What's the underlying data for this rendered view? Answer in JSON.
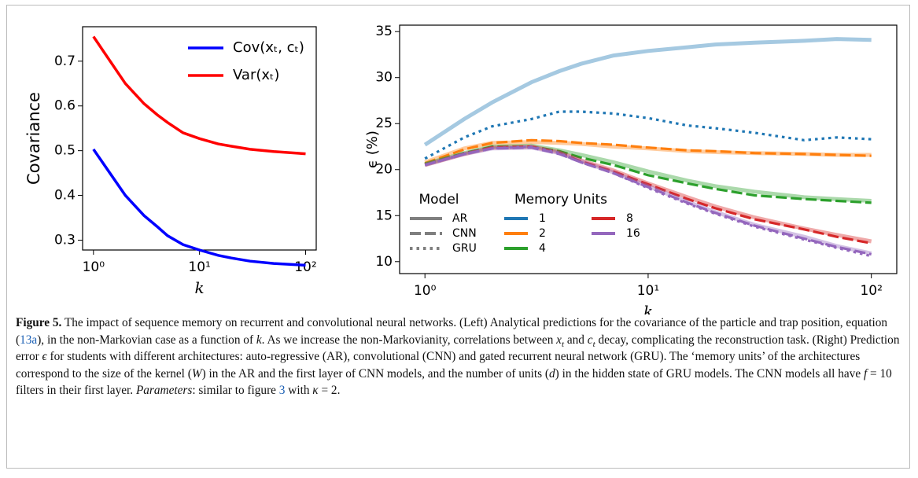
{
  "chart_data": [
    {
      "type": "line",
      "xscale": "log",
      "xlim": [
        0.79,
        126
      ],
      "ylim": [
        0.278,
        0.777
      ],
      "xticks": [
        {
          "value": 1,
          "label": "10⁰"
        },
        {
          "value": 10,
          "label": "10¹"
        },
        {
          "value": 100,
          "label": "10²"
        }
      ],
      "yticks": [
        0.3,
        0.4,
        0.5,
        0.6,
        0.7
      ],
      "xlabel": "k",
      "ylabel": "Covariance",
      "x": [
        1,
        2,
        3,
        4,
        5,
        7,
        10,
        15,
        20,
        30,
        50,
        100
      ],
      "series": [
        {
          "name": "Cov(xₜ, cₜ)",
          "color": "#0000ff",
          "values": [
            0.503,
            0.4,
            0.355,
            0.33,
            0.31,
            0.29,
            0.278,
            0.266,
            0.26,
            0.253,
            0.248,
            0.244
          ]
        },
        {
          "name": "Var(xₜ)",
          "color": "#ff0000",
          "values": [
            0.755,
            0.65,
            0.605,
            0.58,
            0.563,
            0.54,
            0.527,
            0.515,
            0.51,
            0.503,
            0.498,
            0.493
          ]
        }
      ]
    },
    {
      "type": "line",
      "xscale": "log",
      "xlim": [
        0.77,
        130
      ],
      "ylim": [
        8.7,
        35.7
      ],
      "xticks": [
        {
          "value": 1,
          "label": "10⁰"
        },
        {
          "value": 10,
          "label": "10¹"
        },
        {
          "value": 100,
          "label": "10²"
        }
      ],
      "yticks": [
        10,
        15,
        20,
        25,
        30,
        35
      ],
      "xlabel": "k",
      "ylabel": "ϵ (%)",
      "x": [
        1,
        1.5,
        2,
        3,
        4,
        5,
        7,
        10,
        15,
        20,
        30,
        50,
        70,
        100
      ],
      "series": [
        {
          "color": "#1f77b4",
          "linestyle": "solid",
          "alpha": 0.4,
          "values": [
            22.7,
            25.5,
            27.3,
            29.5,
            30.7,
            31.5,
            32.4,
            32.9,
            33.3,
            33.6,
            33.8,
            34.0,
            34.2,
            34.1
          ]
        },
        {
          "color": "#1f77b4",
          "linestyle": "dotted",
          "alpha": 1,
          "values": [
            21.2,
            23.5,
            24.7,
            25.5,
            26.3,
            26.3,
            26.1,
            25.6,
            24.8,
            24.5,
            24.0,
            23.2,
            23.5,
            23.3
          ]
        },
        {
          "color": "#ff7f0e",
          "linestyle": "solid",
          "alpha": 0.4,
          "values": [
            20.8,
            22.3,
            22.9,
            23.0,
            22.9,
            22.8,
            22.5,
            22.3,
            22.0,
            21.9,
            21.8,
            21.7,
            21.6,
            21.6
          ]
        },
        {
          "color": "#ff7f0e",
          "linestyle": "dashed",
          "alpha": 1,
          "values": [
            20.7,
            22.2,
            22.9,
            23.2,
            23.1,
            22.9,
            22.7,
            22.4,
            22.1,
            22.0,
            21.8,
            21.7,
            21.6,
            21.5
          ]
        },
        {
          "color": "#2ca02c",
          "linestyle": "solid",
          "alpha": 0.4,
          "values": [
            20.6,
            21.8,
            22.5,
            22.6,
            22.1,
            21.6,
            20.8,
            19.8,
            18.8,
            18.2,
            17.6,
            17.0,
            16.8,
            16.6
          ]
        },
        {
          "color": "#2ca02c",
          "linestyle": "dashed",
          "alpha": 1,
          "values": [
            20.6,
            21.8,
            22.5,
            22.5,
            22.0,
            21.3,
            20.5,
            19.4,
            18.5,
            17.9,
            17.2,
            16.8,
            16.6,
            16.4
          ]
        },
        {
          "color": "#d62728",
          "linestyle": "solid",
          "alpha": 0.4,
          "values": [
            20.5,
            21.7,
            22.4,
            22.5,
            21.9,
            21.0,
            19.9,
            18.5,
            17.0,
            16.0,
            14.8,
            13.6,
            12.9,
            12.2
          ]
        },
        {
          "color": "#d62728",
          "linestyle": "dashed",
          "alpha": 1,
          "values": [
            20.5,
            21.7,
            22.4,
            22.5,
            21.8,
            20.9,
            19.8,
            18.4,
            16.8,
            15.8,
            14.6,
            13.5,
            12.7,
            12.0
          ]
        },
        {
          "color": "#9467bd",
          "linestyle": "solid",
          "alpha": 0.4,
          "values": [
            20.5,
            21.7,
            22.3,
            22.4,
            21.8,
            20.9,
            19.7,
            18.2,
            16.5,
            15.4,
            14.0,
            12.7,
            11.7,
            10.9
          ]
        },
        {
          "color": "#9467bd",
          "linestyle": "dashed",
          "alpha": 1,
          "values": [
            20.5,
            21.7,
            22.3,
            22.4,
            21.7,
            20.8,
            19.6,
            18.1,
            16.4,
            15.3,
            13.9,
            12.5,
            11.6,
            10.8
          ]
        },
        {
          "color": "#9467bd",
          "linestyle": "dotted",
          "alpha": 1,
          "values": [
            20.5,
            21.7,
            22.3,
            22.5,
            21.8,
            20.8,
            19.6,
            18.0,
            16.3,
            15.2,
            13.8,
            12.4,
            11.5,
            10.6
          ]
        }
      ],
      "legend": {
        "model_title": "Model",
        "models": [
          {
            "name": "AR",
            "linestyle": "solid"
          },
          {
            "name": "CNN",
            "linestyle": "dashed"
          },
          {
            "name": "GRU",
            "linestyle": "dotted"
          }
        ],
        "memory_title": "Memory Units",
        "memory": [
          {
            "name": "1",
            "color": "#1f77b4"
          },
          {
            "name": "2",
            "color": "#ff7f0e"
          },
          {
            "name": "4",
            "color": "#2ca02c"
          },
          {
            "name": "8",
            "color": "#d62728"
          },
          {
            "name": "16",
            "color": "#9467bd"
          }
        ]
      }
    }
  ],
  "caption": [
    {
      "text": "Figure 5.",
      "style": "bold"
    },
    {
      "text": " The impact of sequence memory on recurrent and convolutional neural networks. (Left) Analytical predictions for the covariance of the particle and trap position, equation (",
      "style": "plain"
    },
    {
      "text": "13a",
      "style": "link"
    },
    {
      "text": "), in the non-Markovian case as a function of ",
      "style": "plain"
    },
    {
      "text": "k",
      "style": "italic"
    },
    {
      "text": ". As we increase the non-Markovianity, correlations between ",
      "style": "plain"
    },
    {
      "text": "x",
      "style": "italic"
    },
    {
      "text": "t",
      "style": "sub"
    },
    {
      "text": " and ",
      "style": "plain"
    },
    {
      "text": "c",
      "style": "italic"
    },
    {
      "text": "t",
      "style": "sub"
    },
    {
      "text": " decay, complicating the reconstruction task. (Right) Prediction error ",
      "style": "plain"
    },
    {
      "text": "ϵ",
      "style": "italic"
    },
    {
      "text": " for students with different architectures: auto-regressive (AR), convolutional (CNN) and gated recurrent neural network (GRU). The ‘memory units’ of the architectures correspond to the size of the kernel (",
      "style": "plain"
    },
    {
      "text": "W",
      "style": "italic"
    },
    {
      "text": ") in the AR and the first layer of CNN models, and the number of units (",
      "style": "plain"
    },
    {
      "text": "d",
      "style": "italic"
    },
    {
      "text": ") in the hidden state of GRU models. The CNN models all have ",
      "style": "plain"
    },
    {
      "text": "f",
      "style": "italic"
    },
    {
      "text": " = 10 filters in their first layer. ",
      "style": "plain"
    },
    {
      "text": "Parameters",
      "style": "italic"
    },
    {
      "text": ": similar to figure ",
      "style": "plain"
    },
    {
      "text": "3",
      "style": "link"
    },
    {
      "text": " with ",
      "style": "plain"
    },
    {
      "text": "κ",
      "style": "italic"
    },
    {
      "text": " = 2.",
      "style": "plain"
    }
  ]
}
